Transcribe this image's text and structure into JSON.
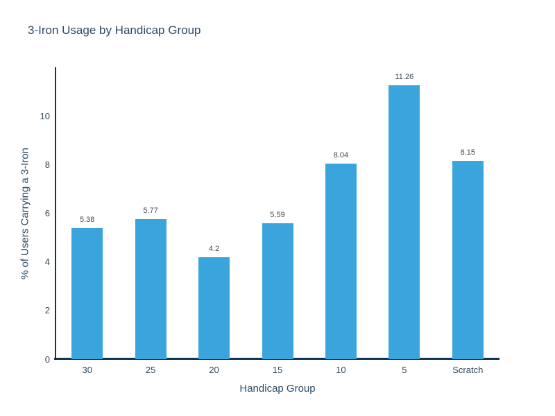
{
  "title": "3-Iron Usage by Handicap Group",
  "colors": {
    "bar": "#39a5dc",
    "axis": "#13344e",
    "title_text": "#2d4a63",
    "tick_text": "#33475b",
    "data_label_text": "#3d4a57",
    "background": "#ffffff"
  },
  "chart_data": {
    "type": "bar",
    "title": "3-Iron Usage by Handicap Group",
    "xlabel": "Handicap Group",
    "ylabel": "% of Users Carrying a 3-Iron",
    "categories": [
      "30",
      "25",
      "20",
      "15",
      "10",
      "5",
      "Scratch"
    ],
    "values": [
      5.38,
      5.77,
      4.2,
      5.59,
      8.04,
      11.26,
      8.15
    ],
    "data_labels": [
      "5.38",
      "5.77",
      "4.2",
      "5.59",
      "8.04",
      "11.26",
      "8.15"
    ],
    "yticks": [
      0,
      2,
      4,
      6,
      8,
      10
    ],
    "ylim": [
      0,
      12
    ],
    "grid": false,
    "legend": "none",
    "bar_color": "#39a5dc"
  }
}
